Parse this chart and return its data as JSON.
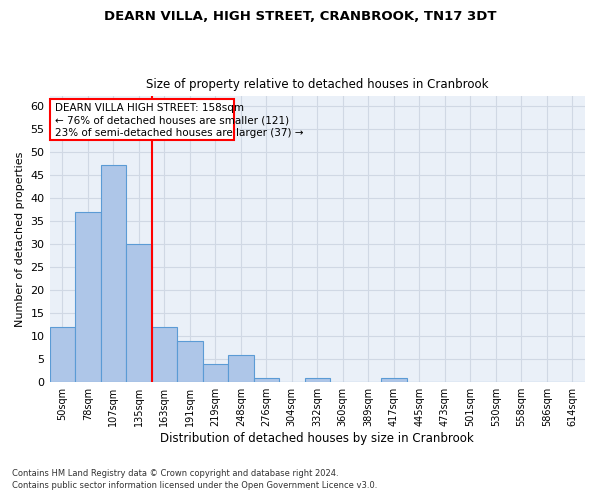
{
  "title": "DEARN VILLA, HIGH STREET, CRANBROOK, TN17 3DT",
  "subtitle": "Size of property relative to detached houses in Cranbrook",
  "xlabel": "Distribution of detached houses by size in Cranbrook",
  "ylabel": "Number of detached properties",
  "categories": [
    "50sqm",
    "78sqm",
    "107sqm",
    "135sqm",
    "163sqm",
    "191sqm",
    "219sqm",
    "248sqm",
    "276sqm",
    "304sqm",
    "332sqm",
    "360sqm",
    "389sqm",
    "417sqm",
    "445sqm",
    "473sqm",
    "501sqm",
    "530sqm",
    "558sqm",
    "586sqm",
    "614sqm"
  ],
  "values": [
    12,
    37,
    47,
    30,
    12,
    9,
    4,
    6,
    1,
    0,
    1,
    0,
    0,
    1,
    0,
    0,
    0,
    0,
    0,
    0,
    0
  ],
  "bar_color": "#aec6e8",
  "bar_edge_color": "#5b9bd5",
  "grid_color": "#d0d8e4",
  "background_color": "#eaf0f8",
  "red_line_x": 3.5,
  "annotation_text_line1": "DEARN VILLA HIGH STREET: 158sqm",
  "annotation_text_line2": "← 76% of detached houses are smaller (121)",
  "annotation_text_line3": "23% of semi-detached houses are larger (37) →",
  "annotation_box_color": "#ff0000",
  "ylim": [
    0,
    62
  ],
  "yticks": [
    0,
    5,
    10,
    15,
    20,
    25,
    30,
    35,
    40,
    45,
    50,
    55,
    60
  ],
  "footnote_line1": "Contains HM Land Registry data © Crown copyright and database right 2024.",
  "footnote_line2": "Contains public sector information licensed under the Open Government Licence v3.0."
}
